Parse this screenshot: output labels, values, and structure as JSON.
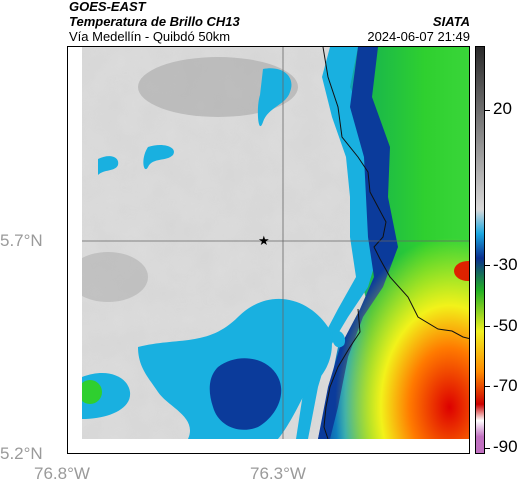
{
  "header": {
    "satellite": "GOES-EAST",
    "product": "Temperatura de Brillo CH13",
    "region": "Vía Medellín - Quibdó 50km",
    "org": "SIATA",
    "datetime": "2024-06-07 21:49"
  },
  "axes": {
    "lat_labels": [
      "5.7°N",
      "5.2°N"
    ],
    "lon_labels": [
      "76.8°W",
      "76.3°W"
    ]
  },
  "colorbar": {
    "tick_labels": [
      "20",
      "-30",
      "-50",
      "-70",
      "-90"
    ],
    "colors": [
      "#2a2a2a",
      "#d8d8d8",
      "#1aa7e0",
      "#0b2f8f",
      "#22b022",
      "#f0f020",
      "#ff8a00",
      "#cc0000",
      "#c070c0"
    ]
  },
  "map": {
    "marker": "star-icon",
    "cloud_color": "#dcdcdc",
    "cold_colors": [
      "#1bb6e6",
      "#0a3a9a",
      "#2fcf2f",
      "#f2f21a",
      "#ff7a00",
      "#dd0000"
    ]
  }
}
